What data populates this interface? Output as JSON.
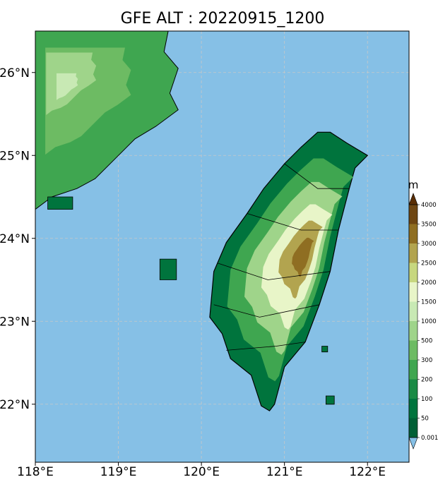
{
  "title": "GFE ALT : 20220915_1200",
  "colors": {
    "sea": "#86c0e6",
    "coast": "#000000",
    "grid": "#c8c8c8"
  },
  "map_data": {
    "type": "heatmap",
    "lon_range": [
      118.0,
      122.5
    ],
    "lat_range": [
      21.3,
      26.5
    ],
    "x_ticks": [
      {
        "value": 118,
        "label": "118°E"
      },
      {
        "value": 119,
        "label": "119°E"
      },
      {
        "value": 120,
        "label": "120°E"
      },
      {
        "value": 121,
        "label": "121°E"
      },
      {
        "value": 122,
        "label": "122°E"
      }
    ],
    "y_ticks": [
      {
        "value": 26,
        "label": "26°N"
      },
      {
        "value": 25,
        "label": "25°N"
      },
      {
        "value": 24,
        "label": "24°N"
      },
      {
        "value": 23,
        "label": "23°N"
      },
      {
        "value": 22,
        "label": "22°N"
      }
    ],
    "grid": true,
    "colorbar": {
      "unit": "m",
      "levels": [
        "0.001",
        "50",
        "100",
        "200",
        "300",
        "500",
        "1000",
        "1500",
        "2000",
        "2500",
        "3000",
        "3500",
        "4000"
      ],
      "colors": [
        "#005f35",
        "#00743d",
        "#1a8a45",
        "#3fa650",
        "#6dbb63",
        "#9fd48a",
        "#c8e9b4",
        "#e8f5c8",
        "#c7d77f",
        "#b2a44f",
        "#8f6e22",
        "#6e4613"
      ],
      "under_color": "#86c0e6",
      "over_color": "#5a2e05"
    },
    "land": {
      "taiwan": [
        [
          121.55,
          25.28
        ],
        [
          121.75,
          25.15
        ],
        [
          122.0,
          25.0
        ],
        [
          121.85,
          24.85
        ],
        [
          121.78,
          24.6
        ],
        [
          121.65,
          24.1
        ],
        [
          121.55,
          23.6
        ],
        [
          121.42,
          23.2
        ],
        [
          121.25,
          22.75
        ],
        [
          121.0,
          22.45
        ],
        [
          120.88,
          22.0
        ],
        [
          120.82,
          21.92
        ],
        [
          120.72,
          21.98
        ],
        [
          120.6,
          22.35
        ],
        [
          120.35,
          22.55
        ],
        [
          120.25,
          22.85
        ],
        [
          120.1,
          23.05
        ],
        [
          120.15,
          23.6
        ],
        [
          120.3,
          23.95
        ],
        [
          120.55,
          24.3
        ],
        [
          120.75,
          24.6
        ],
        [
          121.0,
          24.9
        ],
        [
          121.2,
          25.1
        ],
        [
          121.4,
          25.28
        ]
      ],
      "mainland": [
        [
          118.0,
          26.5
        ],
        [
          119.6,
          26.5
        ],
        [
          119.55,
          26.25
        ],
        [
          119.72,
          26.05
        ],
        [
          119.62,
          25.75
        ],
        [
          119.72,
          25.55
        ],
        [
          119.45,
          25.35
        ],
        [
          119.2,
          25.2
        ],
        [
          119.0,
          25.0
        ],
        [
          118.72,
          24.72
        ],
        [
          118.5,
          24.6
        ],
        [
          118.2,
          24.5
        ],
        [
          118.0,
          24.35
        ]
      ],
      "penghu": [
        [
          119.5,
          23.75
        ],
        [
          119.7,
          23.75
        ],
        [
          119.7,
          23.5
        ],
        [
          119.5,
          23.5
        ]
      ],
      "kinmen": [
        [
          118.15,
          24.5
        ],
        [
          118.45,
          24.5
        ],
        [
          118.45,
          24.35
        ],
        [
          118.15,
          24.35
        ]
      ],
      "green_island": [
        [
          121.45,
          22.7
        ],
        [
          121.52,
          22.7
        ],
        [
          121.52,
          22.63
        ],
        [
          121.45,
          22.63
        ]
      ],
      "orchid_island": [
        [
          121.5,
          22.1
        ],
        [
          121.6,
          22.1
        ],
        [
          121.6,
          22.0
        ],
        [
          121.5,
          22.0
        ]
      ]
    }
  }
}
